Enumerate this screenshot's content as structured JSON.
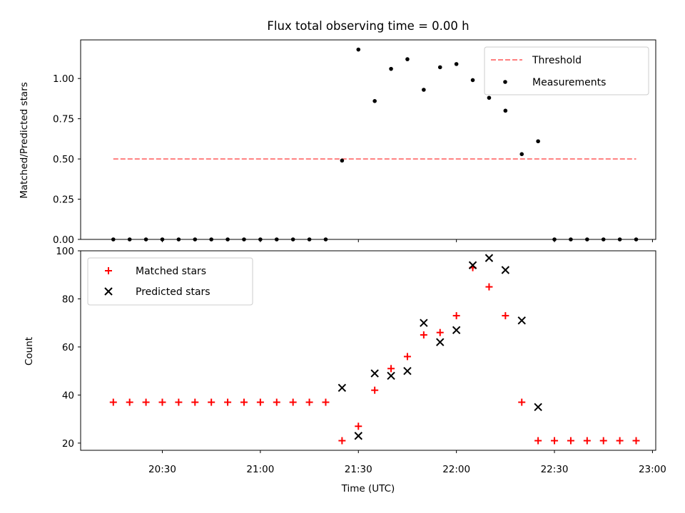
{
  "title": "Flux total observing time = 0.00 h",
  "xlabel": "Time (UTC)",
  "x_ticks": [
    "20:30",
    "21:00",
    "21:30",
    "22:00",
    "22:30",
    "23:00"
  ],
  "colors": {
    "threshold": "#ff7f7f",
    "measurements": "#000000",
    "matched": "#ff0000",
    "predicted": "#000000"
  },
  "chart_data": [
    {
      "type": "scatter",
      "title": "Flux total observing time = 0.00 h",
      "ylabel": "Matched/Predicted stars",
      "xlabel": "",
      "xlim": [
        "20:05",
        "23:01"
      ],
      "ylim": [
        0,
        1.24
      ],
      "y_ticks": [
        "0.00",
        "0.25",
        "0.50",
        "0.75",
        "1.00"
      ],
      "legend_position": "top-right",
      "series": [
        {
          "name": "Threshold",
          "style": "dashed-line",
          "x": [
            "20:15",
            "22:55"
          ],
          "values": [
            0.5,
            0.5
          ]
        },
        {
          "name": "Measurements",
          "style": "dot",
          "x": [
            "20:15",
            "20:20",
            "20:25",
            "20:30",
            "20:35",
            "20:40",
            "20:45",
            "20:50",
            "20:55",
            "21:00",
            "21:05",
            "21:10",
            "21:15",
            "21:20",
            "21:25",
            "21:30",
            "21:35",
            "21:40",
            "21:45",
            "21:50",
            "21:55",
            "22:00",
            "22:05",
            "22:10",
            "22:15",
            "22:20",
            "22:25",
            "22:30",
            "22:35",
            "22:40",
            "22:45",
            "22:50",
            "22:55"
          ],
          "values": [
            0,
            0,
            0,
            0,
            0,
            0,
            0,
            0,
            0,
            0,
            0,
            0,
            0,
            0,
            0.49,
            1.18,
            0.86,
            1.06,
            1.12,
            0.93,
            1.07,
            1.09,
            0.99,
            0.88,
            0.8,
            0.53,
            0.61,
            0,
            0,
            0,
            0,
            0,
            0
          ]
        }
      ]
    },
    {
      "type": "scatter",
      "ylabel": "Count",
      "xlabel": "Time (UTC)",
      "xlim": [
        "20:05",
        "23:01"
      ],
      "ylim": [
        17,
        100
      ],
      "y_ticks": [
        "20",
        "40",
        "60",
        "80",
        "100"
      ],
      "legend_position": "top-left",
      "series": [
        {
          "name": "Matched stars",
          "style": "plus",
          "x": [
            "20:15",
            "20:20",
            "20:25",
            "20:30",
            "20:35",
            "20:40",
            "20:45",
            "20:50",
            "20:55",
            "21:00",
            "21:05",
            "21:10",
            "21:15",
            "21:20",
            "21:25",
            "21:30",
            "21:35",
            "21:40",
            "21:45",
            "21:50",
            "21:55",
            "22:00",
            "22:05",
            "22:10",
            "22:15",
            "22:20",
            "22:25",
            "22:30",
            "22:35",
            "22:40",
            "22:45",
            "22:50",
            "22:55"
          ],
          "values": [
            37,
            37,
            37,
            37,
            37,
            37,
            37,
            37,
            37,
            37,
            37,
            37,
            37,
            37,
            21,
            27,
            42,
            51,
            56,
            65,
            66,
            73,
            93,
            85,
            73,
            37,
            21,
            21,
            21,
            21,
            21,
            21,
            21
          ]
        },
        {
          "name": "Predicted stars",
          "style": "x",
          "x": [
            "21:25",
            "21:30",
            "21:35",
            "21:40",
            "21:45",
            "21:50",
            "21:55",
            "22:00",
            "22:05",
            "22:10",
            "22:15",
            "22:20",
            "22:25"
          ],
          "values": [
            43,
            23,
            49,
            48,
            50,
            70,
            62,
            67,
            94,
            97,
            92,
            71,
            35
          ]
        }
      ]
    }
  ]
}
